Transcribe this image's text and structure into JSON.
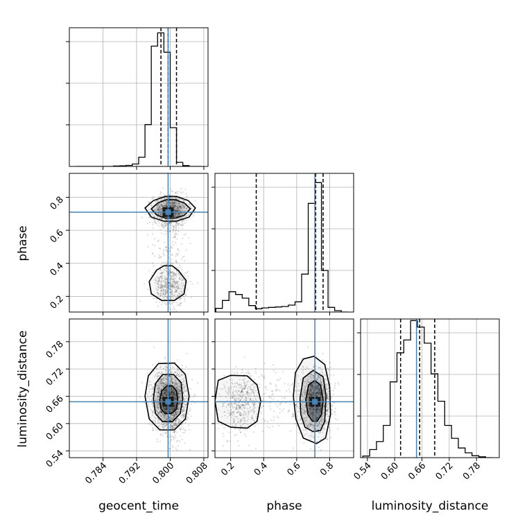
{
  "chart_data": {
    "type": "corner",
    "parameters": [
      "geocent_time",
      "phase",
      "luminosity_distance"
    ],
    "truth_color": "#4682b4",
    "truths": {
      "geocent_time": 0.7995,
      "phase": 0.71,
      "luminosity_distance": 0.648
    },
    "quantiles": {
      "geocent_time": [
        0.7978,
        0.7995,
        0.8015
      ],
      "phase": [
        0.355,
        0.715,
        0.76
      ],
      "luminosity_distance": [
        0.613,
        0.655,
        0.688
      ]
    },
    "axes": {
      "geocent_time": {
        "lim": [
          0.776,
          0.809
        ],
        "ticks": [
          0.784,
          0.792,
          0.8,
          0.808
        ],
        "tick_labels": [
          "0.784",
          "0.792",
          "0.800",
          "0.808"
        ]
      },
      "phase": {
        "lim": [
          0.105,
          0.945
        ],
        "ticks": [
          0.2,
          0.4,
          0.6,
          0.8
        ],
        "tick_labels": [
          "0.2",
          "0.4",
          "0.6",
          "0.8"
        ]
      },
      "luminosity_distance": {
        "lim": [
          0.525,
          0.83
        ],
        "ticks": [
          0.54,
          0.6,
          0.66,
          0.72,
          0.78
        ],
        "tick_labels": [
          "0.54",
          "0.60",
          "0.66",
          "0.72",
          "0.78"
        ]
      }
    },
    "histograms": {
      "geocent_time": {
        "edges": [
          0.7775,
          0.779,
          0.7805,
          0.782,
          0.7835,
          0.785,
          0.7865,
          0.788,
          0.7895,
          0.791,
          0.7925,
          0.794,
          0.7955,
          0.797,
          0.7985,
          0.8,
          0.8015,
          0.803,
          0.8045,
          0.806,
          0.8075
        ],
        "counts": [
          0,
          0,
          0,
          0,
          0,
          0,
          2,
          3,
          5,
          12,
          45,
          205,
          590,
          655,
          560,
          190,
          20,
          4,
          0,
          0
        ],
        "ylim": [
          0,
          680
        ]
      },
      "phase": {
        "edges": [
          0.11,
          0.15,
          0.19,
          0.23,
          0.27,
          0.31,
          0.35,
          0.39,
          0.43,
          0.47,
          0.51,
          0.55,
          0.59,
          0.63,
          0.67,
          0.71,
          0.75,
          0.79,
          0.83,
          0.87,
          0.91
        ],
        "counts": [
          8,
          25,
          44,
          38,
          30,
          14,
          7,
          9,
          10,
          11,
          12,
          15,
          22,
          82,
          235,
          280,
          90,
          10,
          3,
          0
        ],
        "ylim": [
          0,
          300
        ]
      },
      "luminosity_distance": {
        "edges": [
          0.53,
          0.545,
          0.56,
          0.575,
          0.59,
          0.605,
          0.62,
          0.635,
          0.65,
          0.665,
          0.68,
          0.695,
          0.71,
          0.725,
          0.74,
          0.755,
          0.77,
          0.785,
          0.8,
          0.815
        ],
        "counts": [
          10,
          50,
          100,
          200,
          470,
          650,
          730,
          850,
          810,
          710,
          520,
          350,
          200,
          120,
          60,
          30,
          12,
          5,
          0
        ],
        "ylim": [
          0,
          860
        ]
      }
    },
    "clusters": [
      {
        "x": 0.8,
        "y": 0.72,
        "z": 0.648,
        "weight": 0.72,
        "sx": 0.002,
        "sy": 0.045,
        "sz": 0.033
      },
      {
        "x": 0.8,
        "y": 0.26,
        "z": 0.648,
        "weight": 0.28,
        "sx": 0.002,
        "sy": 0.06,
        "sz": 0.033
      }
    ],
    "contours": {
      "geocent_time__phase": [
        [
          [
            0.794,
            0.735
          ],
          [
            0.796,
            0.78
          ],
          [
            0.7988,
            0.805
          ],
          [
            0.8015,
            0.805
          ],
          [
            0.8043,
            0.78
          ],
          [
            0.806,
            0.735
          ],
          [
            0.8045,
            0.68
          ],
          [
            0.8015,
            0.655
          ],
          [
            0.7985,
            0.655
          ],
          [
            0.7955,
            0.68
          ]
        ],
        [
          [
            0.7955,
            0.73
          ],
          [
            0.797,
            0.765
          ],
          [
            0.799,
            0.785
          ],
          [
            0.8013,
            0.785
          ],
          [
            0.8034,
            0.765
          ],
          [
            0.8048,
            0.73
          ],
          [
            0.8034,
            0.692
          ],
          [
            0.8013,
            0.674
          ],
          [
            0.7988,
            0.674
          ],
          [
            0.7968,
            0.692
          ]
        ],
        [
          [
            0.795,
            0.29
          ],
          [
            0.7968,
            0.36
          ],
          [
            0.7985,
            0.385
          ],
          [
            0.8005,
            0.385
          ],
          [
            0.802,
            0.355
          ],
          [
            0.8038,
            0.295
          ],
          [
            0.8033,
            0.215
          ],
          [
            0.801,
            0.175
          ],
          [
            0.798,
            0.175
          ],
          [
            0.7955,
            0.215
          ]
        ]
      ],
      "geocent_time__luminosity_distance": [
        [
          [
            0.794,
            0.66
          ],
          [
            0.7948,
            0.705
          ],
          [
            0.7972,
            0.732
          ],
          [
            0.801,
            0.733
          ],
          [
            0.8036,
            0.708
          ],
          [
            0.8045,
            0.66
          ],
          [
            0.8036,
            0.61
          ],
          [
            0.801,
            0.586
          ],
          [
            0.7975,
            0.586
          ],
          [
            0.795,
            0.61
          ]
        ],
        [
          [
            0.796,
            0.655
          ],
          [
            0.7965,
            0.688
          ],
          [
            0.7982,
            0.708
          ],
          [
            0.8008,
            0.708
          ],
          [
            0.8026,
            0.69
          ],
          [
            0.803,
            0.655
          ],
          [
            0.8024,
            0.622
          ],
          [
            0.8005,
            0.604
          ],
          [
            0.7982,
            0.604
          ],
          [
            0.7965,
            0.622
          ]
        ],
        [
          [
            0.7975,
            0.652
          ],
          [
            0.798,
            0.672
          ],
          [
            0.7992,
            0.683
          ],
          [
            0.8005,
            0.683
          ],
          [
            0.8015,
            0.672
          ],
          [
            0.8018,
            0.652
          ],
          [
            0.8015,
            0.632
          ],
          [
            0.8003,
            0.622
          ],
          [
            0.7988,
            0.622
          ],
          [
            0.7978,
            0.632
          ]
        ]
      ],
      "phase__luminosity_distance": [
        [
          [
            0.105,
            0.65
          ],
          [
            0.125,
            0.695
          ],
          [
            0.2,
            0.706
          ],
          [
            0.3,
            0.705
          ],
          [
            0.36,
            0.685
          ],
          [
            0.382,
            0.65
          ],
          [
            0.36,
            0.605
          ],
          [
            0.3,
            0.59
          ],
          [
            0.2,
            0.592
          ],
          [
            0.125,
            0.605
          ]
        ],
        [
          [
            0.58,
            0.66
          ],
          [
            0.592,
            0.712
          ],
          [
            0.64,
            0.742
          ],
          [
            0.705,
            0.748
          ],
          [
            0.77,
            0.73
          ],
          [
            0.8,
            0.68
          ],
          [
            0.805,
            0.62
          ],
          [
            0.775,
            0.568
          ],
          [
            0.72,
            0.556
          ],
          [
            0.64,
            0.568
          ],
          [
            0.595,
            0.61
          ]
        ],
        [
          [
            0.62,
            0.655
          ],
          [
            0.64,
            0.7
          ],
          [
            0.7,
            0.717
          ],
          [
            0.76,
            0.703
          ],
          [
            0.778,
            0.66
          ],
          [
            0.77,
            0.605
          ],
          [
            0.745,
            0.585
          ],
          [
            0.7,
            0.582
          ],
          [
            0.65,
            0.592
          ],
          [
            0.625,
            0.62
          ]
        ],
        [
          [
            0.655,
            0.652
          ],
          [
            0.672,
            0.685
          ],
          [
            0.71,
            0.695
          ],
          [
            0.745,
            0.684
          ],
          [
            0.76,
            0.652
          ],
          [
            0.75,
            0.62
          ],
          [
            0.725,
            0.605
          ],
          [
            0.695,
            0.605
          ],
          [
            0.668,
            0.62
          ]
        ]
      ]
    }
  }
}
